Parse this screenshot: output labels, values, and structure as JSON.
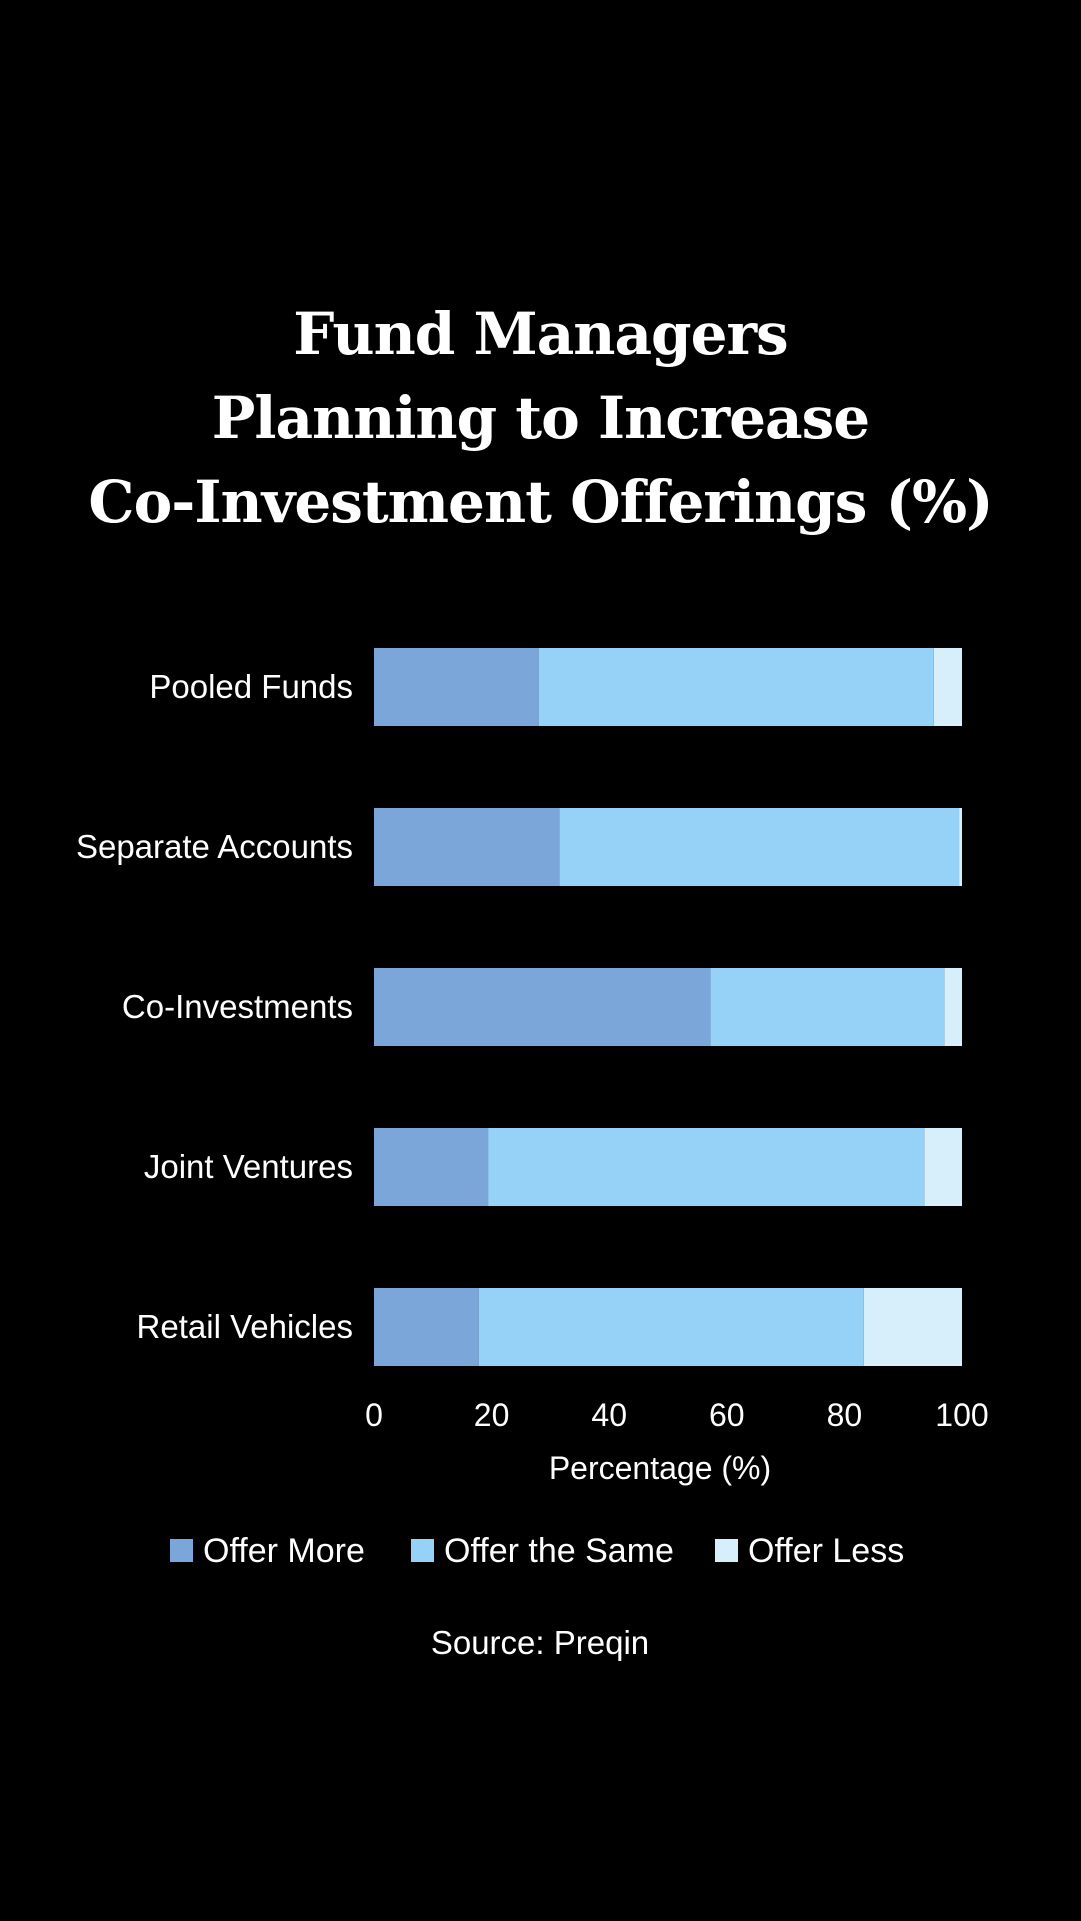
{
  "title_lines": [
    "Fund Managers",
    "Planning to Increase",
    "Co-Investment Offerings (%)"
  ],
  "source": "Source: Preqin",
  "colors": {
    "background": "#000000",
    "text": "#ffffff",
    "offer_more": "#7aa6da",
    "offer_same": "#96d2f8",
    "offer_less": "#d6effb"
  },
  "chart_data": {
    "type": "bar",
    "orientation": "horizontal",
    "stacked": true,
    "title": "Fund Managers Planning to Increase Co-Investment Offerings (%)",
    "categories": [
      "Pooled Funds",
      "Separate Accounts",
      "Co-Investments",
      "Joint Ventures",
      "Retail Vehicles"
    ],
    "series": [
      {
        "name": "Offer More",
        "values": [
          28,
          31.5,
          57.2,
          19.4,
          17.8
        ]
      },
      {
        "name": "Offer the Same",
        "values": [
          67.2,
          68.0,
          39.8,
          74.2,
          65.5
        ]
      },
      {
        "name": "Offer Less",
        "values": [
          6.8,
          2.9,
          5.3,
          8.7,
          18.8
        ]
      }
    ],
    "xlabel": "Percentage (%)",
    "ylabel": "",
    "xlim": [
      0,
      100
    ],
    "xticks": [
      0,
      20,
      40,
      60,
      80,
      100
    ],
    "legend": "bottom-center",
    "grid": false
  }
}
